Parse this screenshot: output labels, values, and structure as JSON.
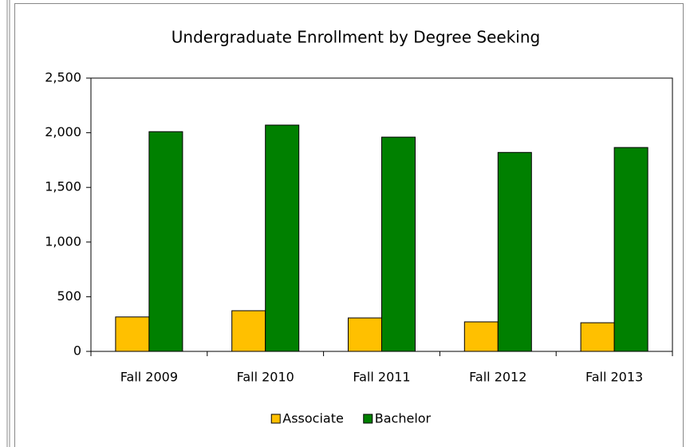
{
  "chart_data": {
    "type": "bar",
    "title": "Undergraduate Enrollment by Degree Seeking",
    "categories": [
      "Fall 2009",
      "Fall 2010",
      "Fall 2011",
      "Fall 2012",
      "Fall 2013"
    ],
    "series": [
      {
        "name": "Associate",
        "color": "#ffc000",
        "values": [
          315,
          372,
          306,
          270,
          262
        ]
      },
      {
        "name": "Bachelor",
        "color": "#008000",
        "values": [
          2010,
          2070,
          1960,
          1820,
          1865
        ]
      }
    ],
    "ylim": [
      0,
      2500
    ],
    "yticks": [
      0,
      500,
      {
        "value": 1000,
        "label": "1,000"
      },
      {
        "value": 1500,
        "label": "1,500"
      },
      {
        "value": 2000,
        "label": "2,000"
      },
      {
        "value": 2500,
        "label": "2,500"
      }
    ],
    "grid": false,
    "legend": "bottom"
  }
}
